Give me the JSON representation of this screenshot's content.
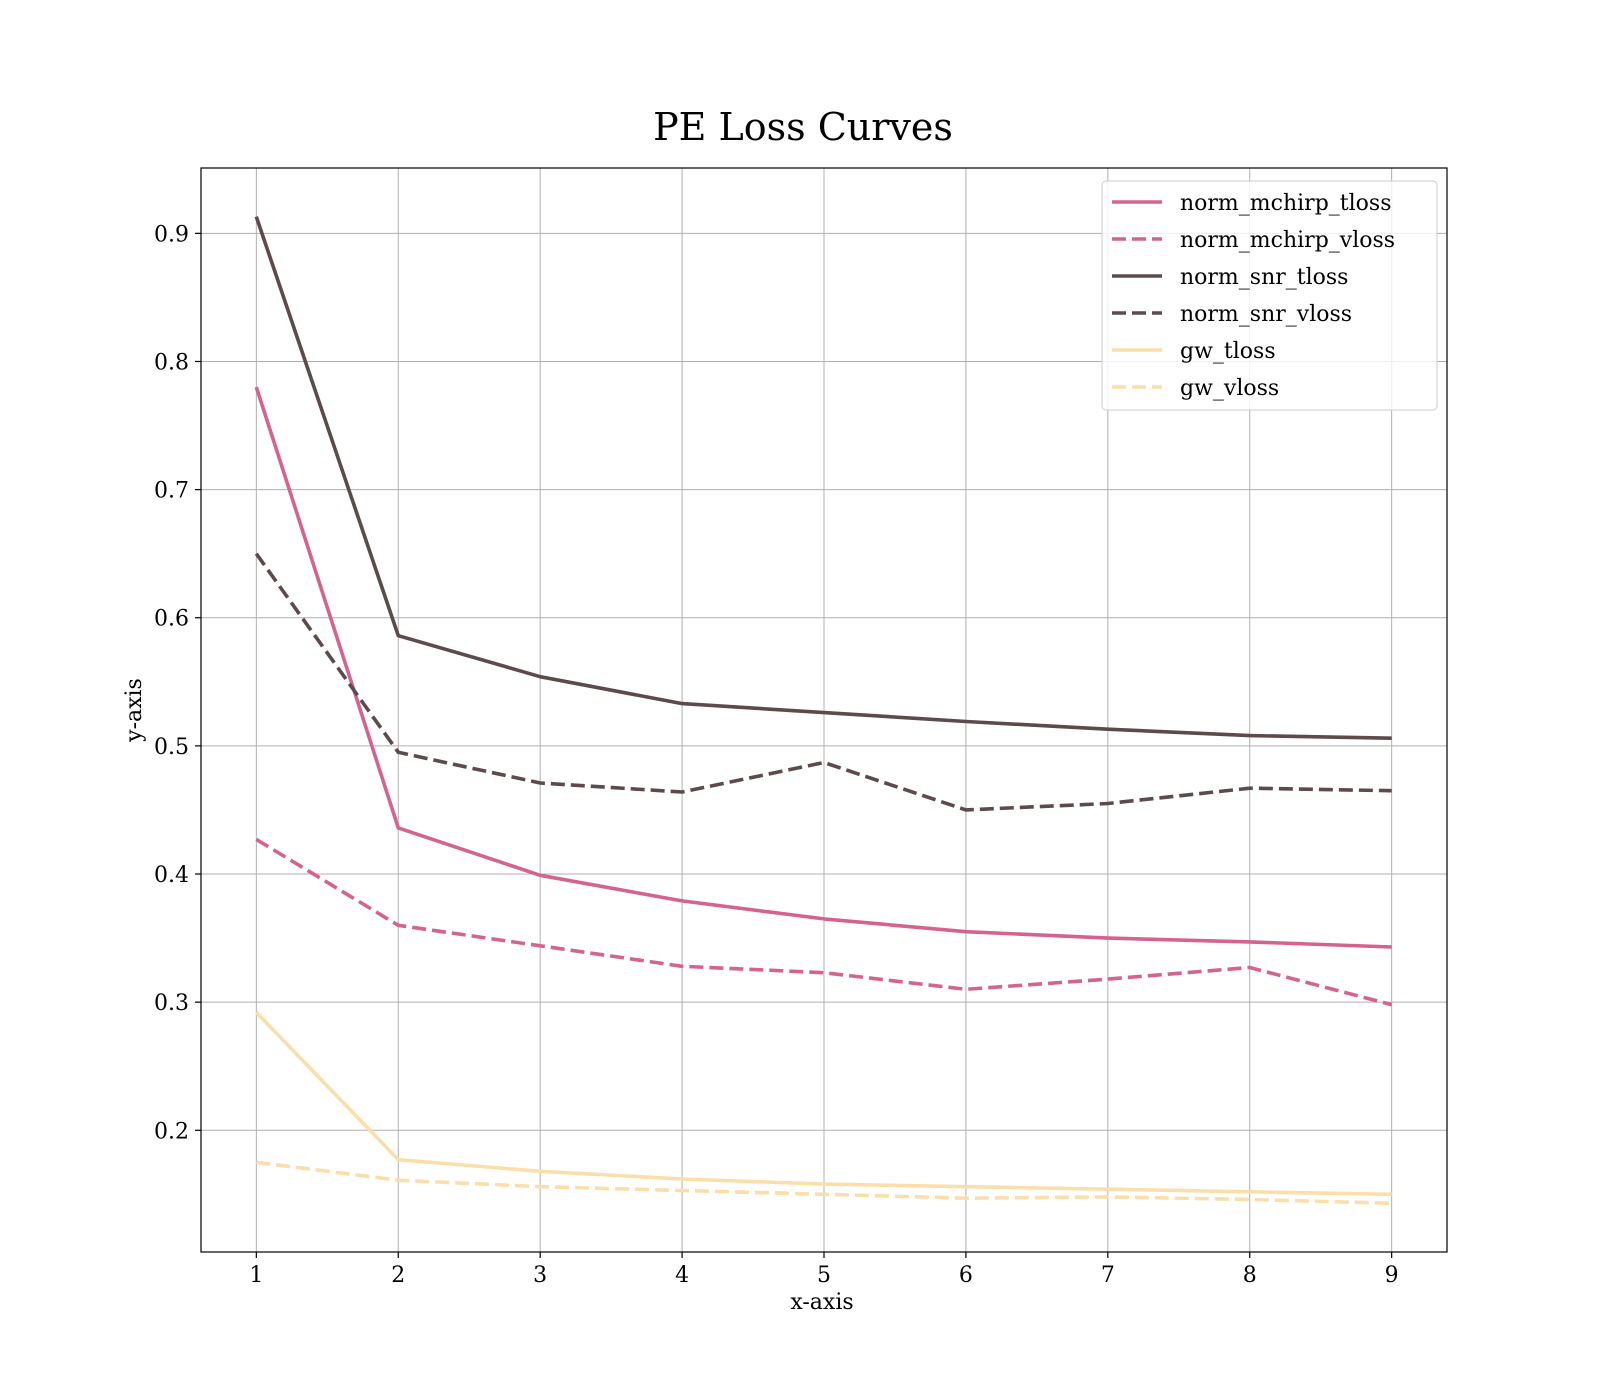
{
  "chart_data": {
    "type": "line",
    "title": "PE Loss Curves",
    "xlabel": "x-axis",
    "ylabel": "y-axis",
    "x": [
      1,
      2,
      3,
      4,
      5,
      6,
      7,
      8,
      9
    ],
    "xlim": [
      0.61,
      9.39
    ],
    "ylim": [
      0.105,
      0.951
    ],
    "x_ticks": [
      1,
      2,
      3,
      4,
      5,
      6,
      7,
      8,
      9
    ],
    "y_ticks": [
      0.2,
      0.3,
      0.4,
      0.5,
      0.6,
      0.7,
      0.8,
      0.9
    ],
    "grid": true,
    "legend_position": "top-right",
    "series": [
      {
        "name": "norm_mchirp_tloss",
        "color": "#d4648f",
        "style": "solid",
        "values": [
          0.78,
          0.436,
          0.399,
          0.379,
          0.365,
          0.355,
          0.35,
          0.347,
          0.343
        ]
      },
      {
        "name": "norm_mchirp_vloss",
        "color": "#d4648f",
        "style": "dashed",
        "values": [
          0.427,
          0.36,
          0.344,
          0.328,
          0.323,
          0.31,
          0.318,
          0.327,
          0.298
        ]
      },
      {
        "name": "norm_snr_tloss",
        "color": "#5d4b4b",
        "style": "solid",
        "values": [
          0.913,
          0.586,
          0.554,
          0.533,
          0.526,
          0.519,
          0.513,
          0.508,
          0.506
        ]
      },
      {
        "name": "norm_snr_vloss",
        "color": "#5d4b4b",
        "style": "dashed",
        "values": [
          0.65,
          0.495,
          0.471,
          0.464,
          0.487,
          0.45,
          0.455,
          0.467,
          0.465
        ]
      },
      {
        "name": "gw_tloss",
        "color": "#fadfaa",
        "style": "solid",
        "values": [
          0.292,
          0.177,
          0.168,
          0.162,
          0.158,
          0.156,
          0.154,
          0.152,
          0.15
        ]
      },
      {
        "name": "gw_vloss",
        "color": "#fadfaa",
        "style": "dashed",
        "values": [
          0.175,
          0.161,
          0.156,
          0.153,
          0.15,
          0.147,
          0.148,
          0.146,
          0.143
        ]
      }
    ]
  }
}
